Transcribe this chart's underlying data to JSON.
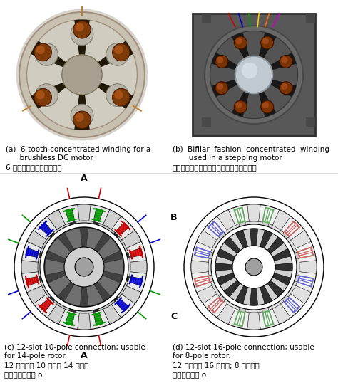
{
  "background_color": "#ffffff",
  "text_color": "#000000",
  "caption_a_en1": "(a)  6-tooth concentrated winding for a",
  "caption_a_en2": "      brushless DC motor",
  "caption_a_jp": "6 スロット集中巻ステータ",
  "caption_b_en1": "(b)  Bifilar  fashion  concentrated  winding",
  "caption_b_en2": "       used in a stepping motor",
  "caption_b_jp": "ステッピングモータでのバイファイラー巻",
  "caption_c_en1": "(c) 12-slot 10-pole connection; usable",
  "caption_c_en2": "for 14-pole rotor.",
  "caption_c_jp1": "12 スロット 10 極結線 14 極ロー",
  "caption_c_jp2": "タにも使用可能 o",
  "caption_d_en1": "(d) 12-slot 16-pole connection; usable",
  "caption_d_en2": "for 8-pole rotor.",
  "caption_d_jp1": "12 スロット 16 極結線; 8 極ロータ",
  "caption_d_jp2": "にも使用可能 o",
  "font_en": 7.5,
  "font_jp": 7.5,
  "phase_colors_c": [
    "#cc0000",
    "#009900",
    "#0000cc"
  ],
  "phase_colors_d": [
    "#cc6666",
    "#66aa66",
    "#6666cc"
  ]
}
